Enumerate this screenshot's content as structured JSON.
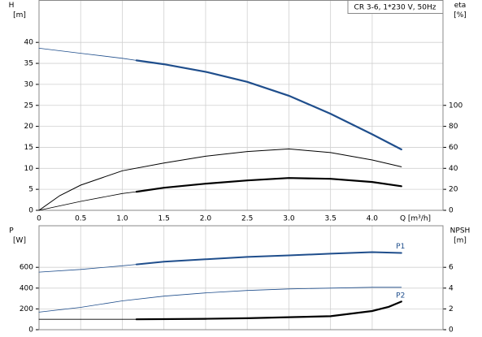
{
  "title": "CR 3-6, 1*230 V, 50Hz",
  "chart_data": [
    {
      "type": "line",
      "xlabel": "Q [m³/h]",
      "ylabel": "H",
      "ylabel_unit": "[m]",
      "y2label": "eta",
      "y2label_unit": "[%]",
      "xlim": [
        0,
        4.85
      ],
      "xticks": [
        0,
        0.5,
        {
          "value": 1,
          "label": "1.0"
        },
        1.5,
        {
          "value": 2,
          "label": "2.0"
        },
        2.5,
        {
          "value": 3,
          "label": "3.0"
        },
        3.5,
        {
          "value": 4,
          "label": "4.0"
        }
      ],
      "xtick_labels": true,
      "ylim": [
        0,
        50
      ],
      "yticks": [
        0,
        5,
        10,
        15,
        20,
        25,
        30,
        35,
        40
      ],
      "y2lim": [
        0,
        200
      ],
      "y2ticks": [
        0,
        20,
        40,
        60,
        80,
        100
      ],
      "grid": true,
      "series": [
        {
          "color": "#1f4e8c",
          "width": 0.8,
          "axis": "y",
          "x": [
            0,
            0.5,
            1.0,
            1.17
          ],
          "values": [
            38.6,
            37.4,
            36.2,
            35.7
          ]
        },
        {
          "color": "#1f4e8c",
          "width": 2.2,
          "axis": "y",
          "x": [
            1.17,
            1.5,
            2.0,
            2.5,
            3.0,
            3.5,
            4.0,
            4.35
          ],
          "values": [
            35.7,
            34.8,
            33.0,
            30.6,
            27.3,
            23.0,
            18.1,
            14.5
          ]
        },
        {
          "color": "#000000",
          "width": 1.0,
          "axis": "y2",
          "x": [
            0,
            0.25,
            0.5,
            1.0,
            1.5,
            2.0,
            2.5,
            3.0,
            3.5,
            4.0,
            4.35
          ],
          "values": [
            0,
            14,
            24,
            37.7,
            45,
            51.5,
            56,
            58.5,
            55,
            48,
            41.5
          ]
        },
        {
          "color": "#000000",
          "width": 0.8,
          "axis": "y2",
          "x": [
            0,
            0.5,
            1.0,
            1.17
          ],
          "values": [
            0,
            8.5,
            16,
            17.7
          ]
        },
        {
          "color": "#000000",
          "width": 2.2,
          "axis": "y2",
          "x": [
            1.17,
            1.5,
            2.0,
            2.5,
            3.0,
            3.5,
            4.0,
            4.35
          ],
          "values": [
            17.7,
            21.5,
            25.4,
            28.5,
            30.8,
            30.0,
            27.0,
            23.0
          ]
        }
      ]
    },
    {
      "type": "line",
      "ylabel": "P",
      "ylabel_unit": "[W]",
      "y2label": "NPSH",
      "y2label_unit": "[m]",
      "xlim": [
        0,
        4.85
      ],
      "xticks": [
        0,
        0.5,
        1,
        1.5,
        2,
        2.5,
        3,
        3.5,
        4
      ],
      "xtick_labels": false,
      "ylim": [
        0,
        1000
      ],
      "yticks": [
        0,
        200,
        400,
        600
      ],
      "y2lim": [
        0,
        10
      ],
      "y2ticks": [
        0,
        2,
        4,
        6
      ],
      "grid": true,
      "series": [
        {
          "color": "#1f4e8c",
          "width": 0.8,
          "axis": "y",
          "x": [
            0,
            0.5,
            1.0,
            1.17
          ],
          "values": [
            554,
            580,
            615,
            628
          ]
        },
        {
          "name": "P1",
          "color": "#1f4e8c",
          "width": 2.0,
          "axis": "y",
          "x": [
            1.17,
            1.5,
            2.0,
            2.5,
            3.0,
            3.5,
            4.0,
            4.35
          ],
          "values": [
            628,
            654,
            677,
            700,
            715,
            731,
            746,
            738
          ]
        },
        {
          "name": "P2",
          "color": "#1f4e8c",
          "width": 0.8,
          "axis": "y",
          "x": [
            0,
            0.5,
            1.0,
            1.5,
            2.0,
            2.5,
            3.0,
            3.5,
            4.0,
            4.35
          ],
          "values": [
            169,
            215,
            277,
            323,
            354,
            377,
            392,
            400,
            408,
            408
          ]
        },
        {
          "color": "#000000",
          "width": 0.8,
          "axis": "y2",
          "x": [
            0,
            1.17
          ],
          "values": [
            1.0,
            1.0
          ]
        },
        {
          "color": "#000000",
          "width": 2.2,
          "axis": "y2",
          "x": [
            1.17,
            2.0,
            2.5,
            3.0,
            3.5,
            4.0,
            4.2,
            4.35
          ],
          "values": [
            1.0,
            1.05,
            1.1,
            1.2,
            1.3,
            1.8,
            2.2,
            2.7
          ]
        }
      ]
    }
  ]
}
